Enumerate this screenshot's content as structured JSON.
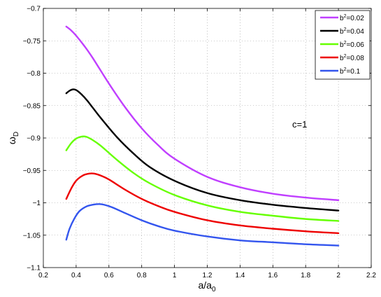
{
  "chart_data": {
    "type": "line",
    "xlabel": "a/a",
    "xlabel_sub": "0",
    "ylabel": "ω",
    "ylabel_sub": "D",
    "xlim": [
      0.2,
      2.2
    ],
    "ylim": [
      -1.1,
      -0.7
    ],
    "xticks": [
      0.2,
      0.4,
      0.6,
      0.8,
      1,
      1.2,
      1.4,
      1.6,
      1.8,
      2,
      2.2
    ],
    "xtick_labels": [
      "0.2",
      "0.4",
      "0.6",
      "0.8",
      "1",
      "1.2",
      "1.4",
      "1.6",
      "1.8",
      "2",
      "2.2"
    ],
    "yticks": [
      -1.1,
      -1.05,
      -1,
      -0.95,
      -0.9,
      -0.85,
      -0.8,
      -0.75,
      -0.7
    ],
    "ytick_labels": [
      "−1.1",
      "−1.05",
      "−1",
      "−0.95",
      "−0.9",
      "−0.85",
      "−0.8",
      "−0.75",
      "−0.7"
    ],
    "grid": true,
    "legend_position": "top-right",
    "annotation": "c=1",
    "series": [
      {
        "name_base": "b",
        "name_sup": "2",
        "name_rest": "=0.02",
        "color": "#c03fff",
        "x": [
          0.34,
          0.37,
          0.4,
          0.45,
          0.5,
          0.6,
          0.7,
          0.8,
          0.9,
          1.0,
          1.2,
          1.4,
          1.6,
          1.8,
          2.0
        ],
        "y": [
          -0.728,
          -0.734,
          -0.742,
          -0.758,
          -0.776,
          -0.816,
          -0.853,
          -0.885,
          -0.911,
          -0.932,
          -0.96,
          -0.976,
          -0.986,
          -0.992,
          -0.996
        ]
      },
      {
        "name_base": "b",
        "name_sup": "2",
        "name_rest": "=0.04",
        "color": "#000000",
        "x": [
          0.34,
          0.36,
          0.38,
          0.4,
          0.43,
          0.47,
          0.55,
          0.65,
          0.75,
          0.85,
          1.0,
          1.2,
          1.4,
          1.6,
          1.8,
          2.0
        ],
        "y": [
          -0.831,
          -0.827,
          -0.825,
          -0.826,
          -0.832,
          -0.843,
          -0.869,
          -0.899,
          -0.924,
          -0.945,
          -0.966,
          -0.985,
          -0.996,
          -1.003,
          -1.008,
          -1.012
        ]
      },
      {
        "name_base": "b",
        "name_sup": "2",
        "name_rest": "=0.06",
        "color": "#66ff00",
        "x": [
          0.34,
          0.37,
          0.4,
          0.43,
          0.46,
          0.5,
          0.55,
          0.65,
          0.75,
          0.85,
          1.0,
          1.2,
          1.4,
          1.6,
          1.8,
          2.0
        ],
        "y": [
          -0.919,
          -0.908,
          -0.901,
          -0.898,
          -0.898,
          -0.903,
          -0.912,
          -0.934,
          -0.954,
          -0.97,
          -0.988,
          -1.004,
          -1.014,
          -1.02,
          -1.025,
          -1.028
        ]
      },
      {
        "name_base": "b",
        "name_sup": "2",
        "name_rest": "=0.08",
        "color": "#ee0000",
        "x": [
          0.34,
          0.37,
          0.4,
          0.44,
          0.48,
          0.51,
          0.55,
          0.6,
          0.7,
          0.8,
          0.9,
          1.0,
          1.2,
          1.4,
          1.6,
          1.8,
          2.0
        ],
        "y": [
          -0.994,
          -0.978,
          -0.966,
          -0.958,
          -0.955,
          -0.955,
          -0.958,
          -0.964,
          -0.98,
          -0.994,
          -1.005,
          -1.014,
          -1.027,
          -1.035,
          -1.04,
          -1.044,
          -1.047
        ]
      },
      {
        "name_base": "b",
        "name_sup": "2",
        "name_rest": "=0.1",
        "color": "#3355ee",
        "x": [
          0.34,
          0.36,
          0.39,
          0.42,
          0.46,
          0.5,
          0.54,
          0.57,
          0.62,
          0.7,
          0.8,
          0.9,
          1.0,
          1.2,
          1.4,
          1.6,
          1.8,
          2.0
        ],
        "y": [
          -1.057,
          -1.04,
          -1.024,
          -1.013,
          -1.006,
          -1.003,
          -1.002,
          -1.003,
          -1.007,
          -1.016,
          -1.027,
          -1.036,
          -1.043,
          -1.052,
          -1.058,
          -1.061,
          -1.064,
          -1.066
        ]
      }
    ]
  }
}
